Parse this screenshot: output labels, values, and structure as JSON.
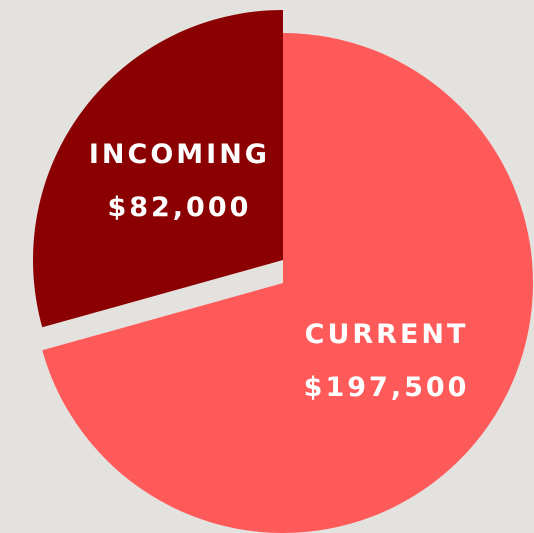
{
  "chart_data": {
    "type": "pie",
    "categories": [
      "CURRENT",
      "INCOMING"
    ],
    "values": [
      197500,
      82000
    ],
    "value_labels": [
      "$197,500",
      "$82,000"
    ],
    "colors": [
      "#ff5a5a",
      "#8b0000"
    ]
  }
}
